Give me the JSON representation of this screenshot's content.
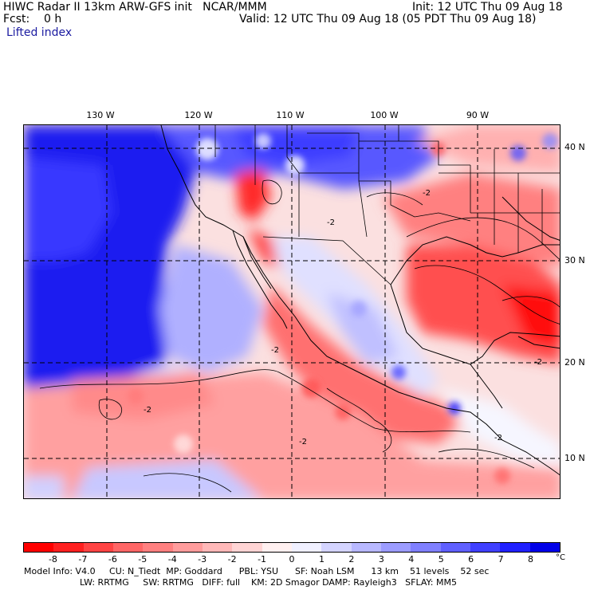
{
  "header": {
    "title_line1": "HIWC Radar II 13km ARW-GFS init   NCAR/MMM",
    "title_line2": "Fcst:    0 h",
    "title_line3": "Lifted index",
    "init": "Init: 12 UTC Thu 09 Aug 18",
    "valid": "Valid: 12 UTC Thu 09 Aug 18 (05 PDT Thu 09 Aug 18)"
  },
  "map": {
    "lon_labels": [
      "130 W",
      "120 W",
      "110 W",
      "100 W",
      "90 W"
    ],
    "lat_labels": [
      "40 N",
      "30 N",
      "20 N",
      "10 N"
    ],
    "contour_labels": [
      "-2",
      "-2",
      "-2",
      "-2",
      "-2",
      "-2",
      "-2"
    ]
  },
  "colorbar": {
    "labels": [
      "-8",
      "-7",
      "-6",
      "-5",
      "-4",
      "-3",
      "-2",
      "-1",
      "0",
      "1",
      "2",
      "3",
      "4",
      "5",
      "6",
      "7",
      "8"
    ],
    "unit": "°C",
    "colors": [
      "#ff0000",
      "#ff2020",
      "#ff4444",
      "#ff6666",
      "#ff8080",
      "#ff9c9c",
      "#ffb8b8",
      "#ffd4d4",
      "#fff0f0",
      "#f0f0ff",
      "#d4d4ff",
      "#b8b8ff",
      "#9c9cff",
      "#8080ff",
      "#6060ff",
      "#4040ff",
      "#2020ff",
      "#0000e8"
    ]
  },
  "model_info": {
    "line1": "Model Info: V4.0     CU: N_Tiedt  MP: Goddard      PBL: YSU      SF: Noah LSM      13 km    51 levels    52 sec",
    "line2": "LW: RRTMG     SW: RRTMG   DIFF: full    KM: 2D Smagor DAMP: Rayleigh3   SFLAY: MM5"
  }
}
